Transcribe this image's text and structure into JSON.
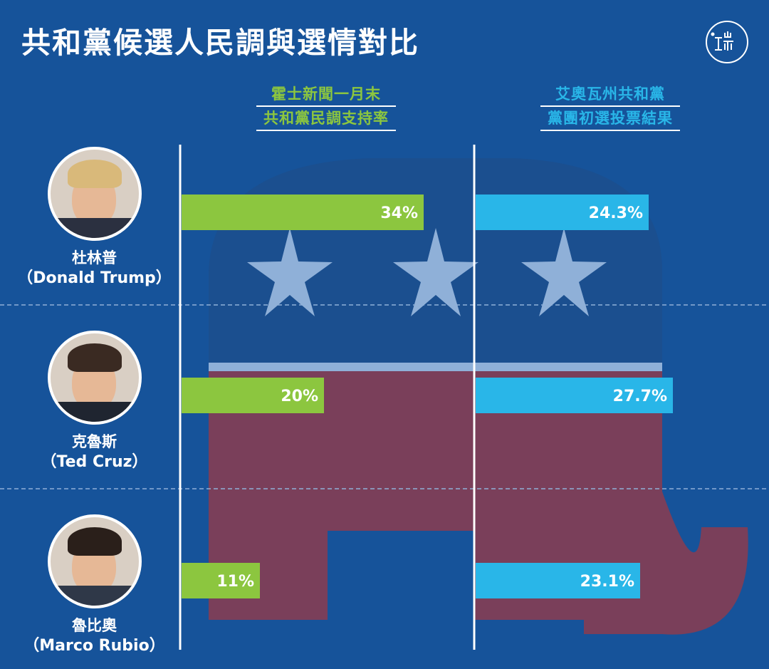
{
  "title": "共和黨候選人民調與選情對比",
  "colors": {
    "background": "#16539a",
    "poll": "#8cc63f",
    "caucus": "#29b6e8",
    "elephant_top": "#1b4f8f",
    "elephant_bottom": "#7a3f5a",
    "star": "#8fb0d8",
    "white": "#ffffff"
  },
  "columns": {
    "poll": {
      "line1": "霍士新聞一月末",
      "line2": "共和黨民調支持率"
    },
    "caucus": {
      "line1": "艾奧瓦州共和黨",
      "line2": "黨團初選投票結果"
    }
  },
  "candidates": [
    {
      "name_zh": "杜林普",
      "name_en": "（Donald Trump）",
      "hair": "#d9b97a",
      "suit": "#2b3040"
    },
    {
      "name_zh": "克魯斯",
      "name_en": "（Ted Cruz）",
      "hair": "#3a2a22",
      "suit": "#1f2530"
    },
    {
      "name_zh": "魯比奧",
      "name_en": "（Marco Rubio）",
      "hair": "#2a1f1a",
      "suit": "#2f3848"
    }
  ],
  "chart_data": [
    {
      "type": "bar",
      "title": "霍士新聞一月末共和黨民調支持率",
      "categories": [
        "杜林普（Donald Trump）",
        "克魯斯（Ted Cruz）",
        "魯比奧（Marco Rubio）"
      ],
      "values": [
        34,
        20,
        11
      ],
      "labels": [
        "34%",
        "20%",
        "11%"
      ],
      "color": "#8cc63f"
    },
    {
      "type": "bar",
      "title": "艾奧瓦州共和黨黨團初選投票結果",
      "categories": [
        "杜林普（Donald Trump）",
        "克魯斯（Ted Cruz）",
        "魯比奧（Marco Rubio）"
      ],
      "values": [
        24.3,
        27.7,
        23.1
      ],
      "labels": [
        "24.3%",
        "27.7%",
        "23.1%"
      ],
      "color": "#29b6e8"
    }
  ]
}
